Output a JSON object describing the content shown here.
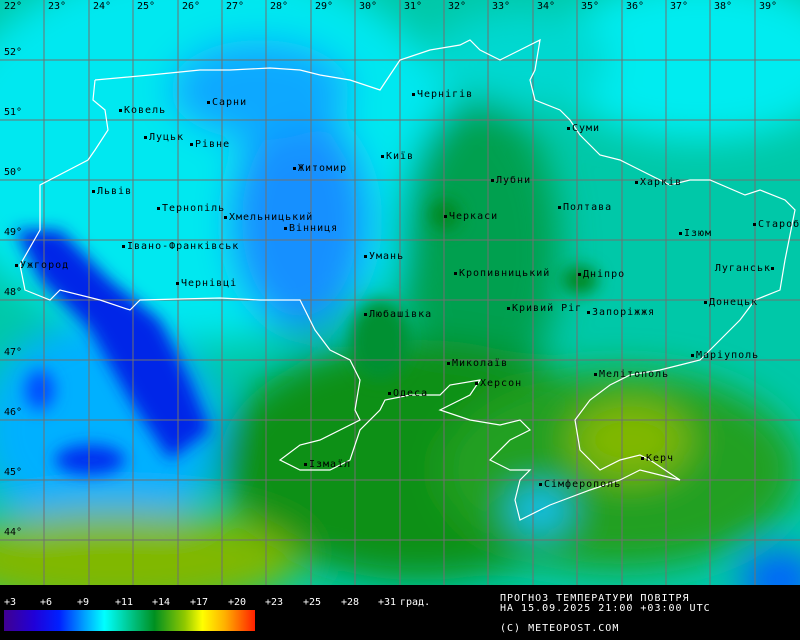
{
  "map": {
    "longitude_labels": [
      "22°",
      "23°",
      "24°",
      "25°",
      "26°",
      "27°",
      "28°",
      "29°",
      "30°",
      "31°",
      "32°",
      "33°",
      "34°",
      "35°",
      "36°",
      "37°",
      "38°",
      "39°"
    ],
    "latitude_labels": [
      "52°",
      "51°",
      "50°",
      "49°",
      "48°",
      "47°",
      "46°",
      "45°",
      "44°"
    ],
    "cities": [
      "Ковель",
      "Сарни",
      "Чернігів",
      "Суми",
      "Луцьк",
      "Рівне",
      "Київ",
      "Житомир",
      "Лубни",
      "Харків",
      "Львів",
      "Тернопіль",
      "Хмельницький",
      "Полтава",
      "Черкаси",
      "Вінниця",
      "Старобільськ",
      "Ізюм",
      "Івано-Франківськ",
      "Умань",
      "Ужгород",
      "Луганськ",
      "Кропивницький",
      "Дніпро",
      "Чернівці",
      "Донецьк",
      "Кривий Ріг",
      "Запоріжжя",
      "Любашівка",
      "Маріуполь",
      "Миколаїв",
      "Мелітополь",
      "Херсон",
      "Одеса",
      "Керч",
      "Ізмаїл",
      "Сімферополь"
    ]
  },
  "legend": {
    "ticks": [
      "+3",
      "+6",
      "+9",
      "+11",
      "+14",
      "+17",
      "+20",
      "+23",
      "+25",
      "+28",
      "+31"
    ],
    "unit": "град.",
    "colors": [
      "#400090",
      "#2000d8",
      "#0020ff",
      "#00a0ff",
      "#00ffff",
      "#00c890",
      "#009020",
      "#90c800",
      "#ffff00",
      "#ffb000",
      "#ff2000"
    ]
  },
  "info": {
    "title": "ПРОГНОЗ ТЕМПЕРАТУРИ ПОВІТРЯ",
    "datetime": "НА 15.09.2025 21:00 +03:00 UTC",
    "copyright": "(C) METEOPOST.COM"
  }
}
